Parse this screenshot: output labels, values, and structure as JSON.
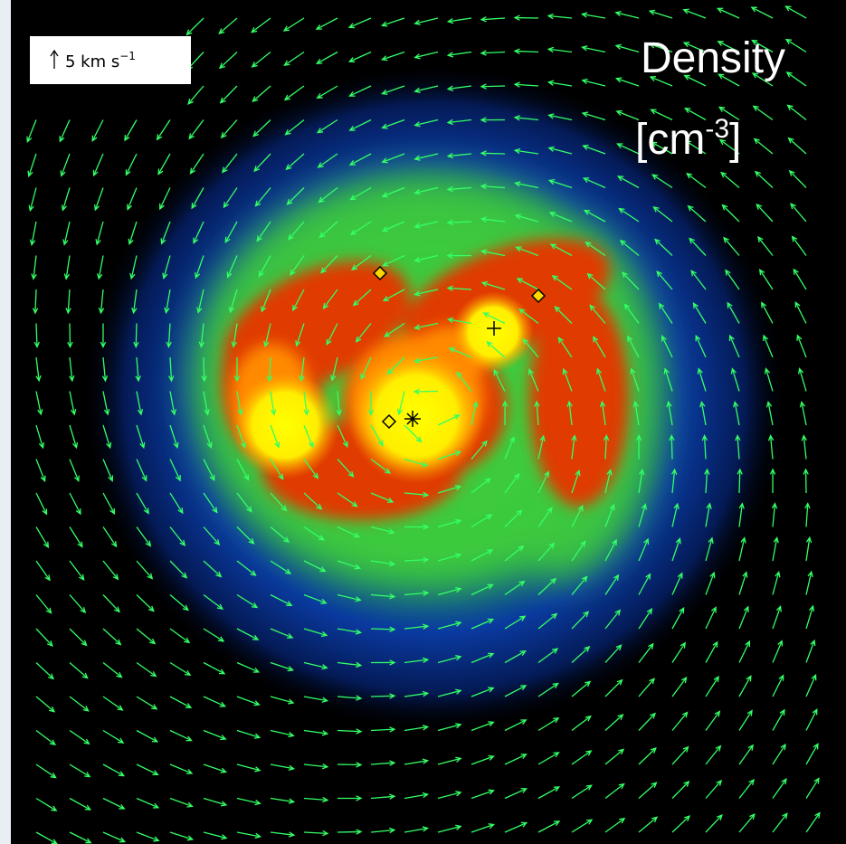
{
  "scale_bar": {
    "label": "5 km s",
    "exponent": "−1"
  },
  "title": {
    "line1": "Density",
    "line2_prefix": "[cm",
    "exponent": "-3",
    "line2_suffix": "]"
  }
}
